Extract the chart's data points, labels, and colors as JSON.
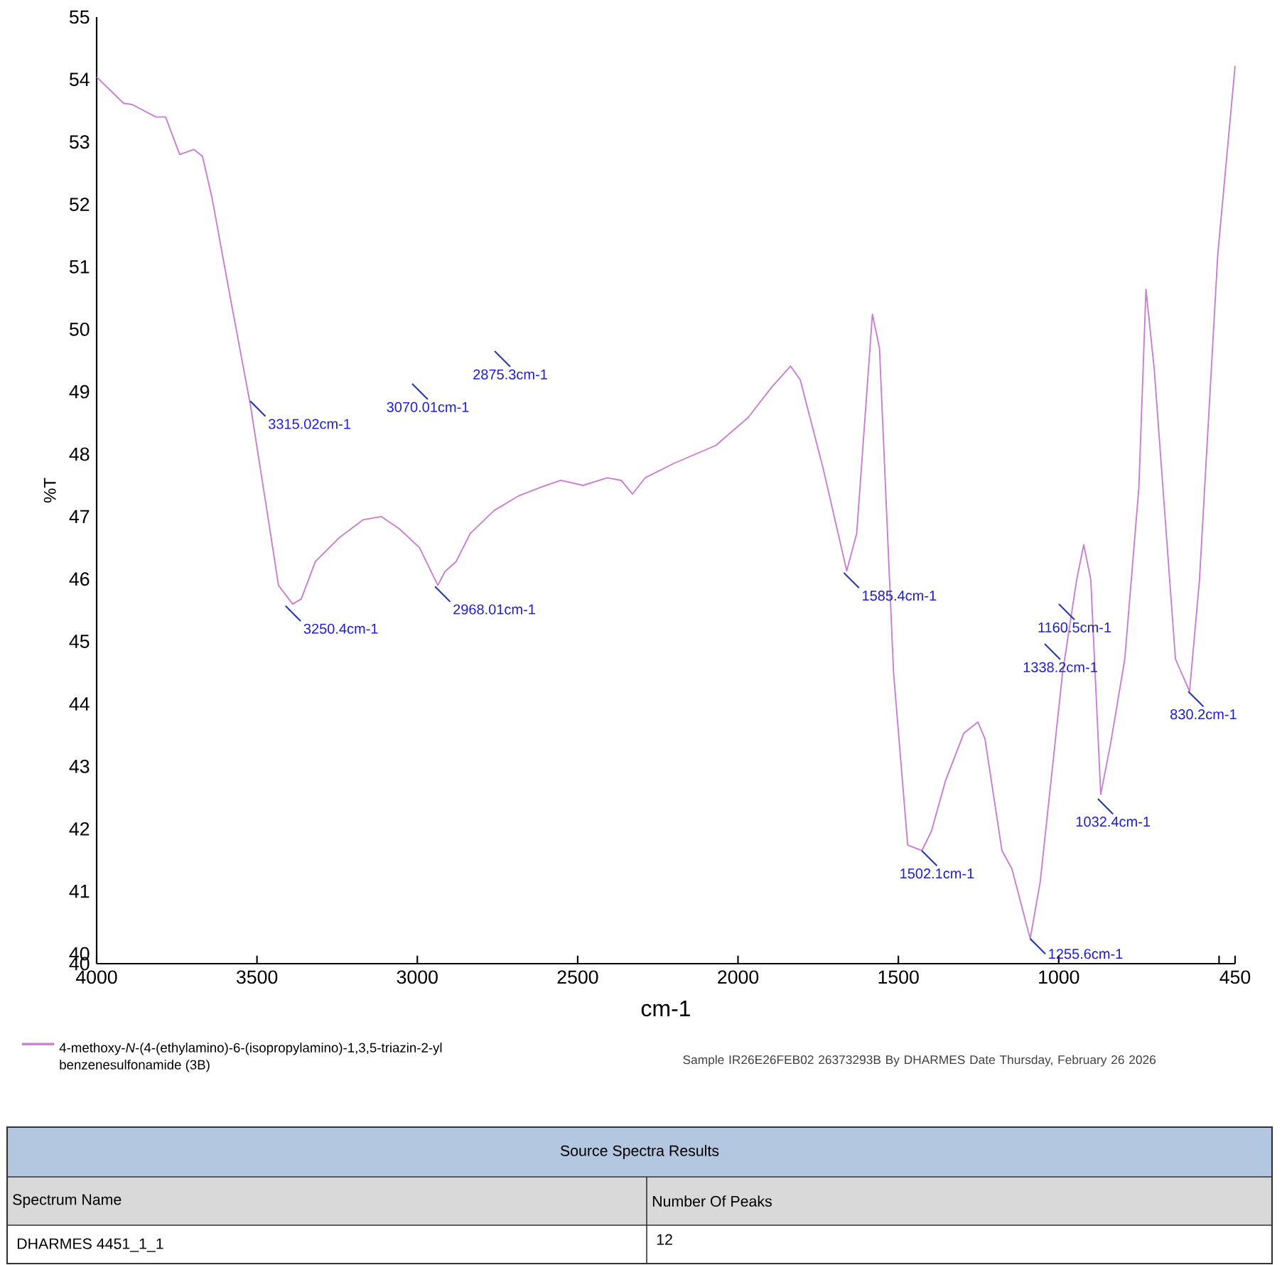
{
  "chart_data": {
    "type": "line",
    "xlabel": "cm-1",
    "ylabel": "%T",
    "xlim": [
      4000,
      450
    ],
    "ylim": [
      39.84,
      55
    ],
    "xticks": [
      4000,
      3500,
      3000,
      2500,
      2000,
      1500,
      1000,
      {
        "value": 500,
        "label": null
      },
      450
    ],
    "yticks": [
      {
        "value": 39.84,
        "label": "40"
      },
      40,
      41,
      42,
      43,
      44,
      45,
      46,
      47,
      48,
      49,
      50,
      51,
      52,
      53,
      54,
      55
    ],
    "legend": "bottom left",
    "series": [
      {
        "name": "4-methoxy-*N*-(4-(ethylamino)-6-(isopropylamino)-1,3,5-triazin-2-yl benzenesulfonamide  (3B)",
        "color": "#c77dd0",
        "x": [
          4000,
          3916,
          3890,
          3815,
          3785,
          3741,
          3697,
          3670,
          3640,
          3582,
          3521,
          3463,
          3433,
          3389,
          3362,
          3318,
          3244,
          3169,
          3112,
          3055,
          2993,
          2936,
          2914,
          2879,
          2835,
          2760,
          2685,
          2615,
          2553,
          2483,
          2408,
          2364,
          2329,
          2290,
          2201,
          2069,
          1968,
          1894,
          1836,
          1806,
          1735,
          1661,
          1630,
          1581,
          1559,
          1515,
          1471,
          1427,
          1397,
          1353,
          1296,
          1252,
          1230,
          1177,
          1146,
          1089,
          1058,
          988,
          944,
          922,
          900,
          869,
          838,
          794,
          750,
          728,
          702,
          636,
          592,
          561,
          504,
          450
        ],
        "values": [
          54.04,
          53.62,
          53.6,
          53.4,
          53.4,
          52.8,
          52.88,
          52.77,
          52.1,
          50.47,
          48.8,
          46.9,
          45.9,
          45.6,
          45.68,
          46.28,
          46.66,
          46.95,
          47.0,
          46.8,
          46.5,
          45.9,
          46.12,
          46.28,
          46.73,
          47.1,
          47.33,
          47.47,
          47.58,
          47.5,
          47.62,
          47.58,
          47.36,
          47.62,
          47.85,
          48.14,
          48.59,
          49.08,
          49.41,
          49.19,
          47.78,
          46.13,
          46.73,
          50.24,
          49.7,
          44.5,
          41.74,
          41.65,
          41.96,
          42.77,
          43.53,
          43.71,
          43.44,
          41.65,
          41.36,
          40.24,
          41.14,
          44.5,
          45.99,
          46.55,
          45.99,
          42.55,
          43.37,
          44.72,
          47.47,
          50.64,
          49.35,
          44.72,
          44.2,
          45.99,
          51.2,
          54.22
        ]
      }
    ],
    "annotations": [
      {
        "text": "3315.02cm-1",
        "x": 3521,
        "y": 48.85
      },
      {
        "text": "3250.4cm-1",
        "x": 3411,
        "y": 45.57
      },
      "3070.01cm-1",
      {
        "text": "2968.01cm-1",
        "x": 2945,
        "y": 45.88
      },
      "2875.3cm-1",
      {
        "text": "1585.4cm-1",
        "x": 1670,
        "y": 46.1
      },
      {
        "text": "1502.1cm-1",
        "x": 1427,
        "y": 41.65
      },
      {
        "text": "1255.6cm-1",
        "x": 1089,
        "y": 40.24
      },
      "1338.2cm-1",
      "1160.5cm-1",
      {
        "text": "1032.4cm-1",
        "x": 878,
        "y": 42.48
      },
      {
        "text": "830.2cm-1",
        "x": 596,
        "y": 44.2
      },
      "Sample  IR26E26FEB02  26373293B By DHARMES  Date Thursday,  February 26 2026",
      "Source Spectra Results",
      "Spectrum Name",
      "Number Of Peaks",
      "DHARMES 4451_1_1",
      "12"
    ]
  }
}
